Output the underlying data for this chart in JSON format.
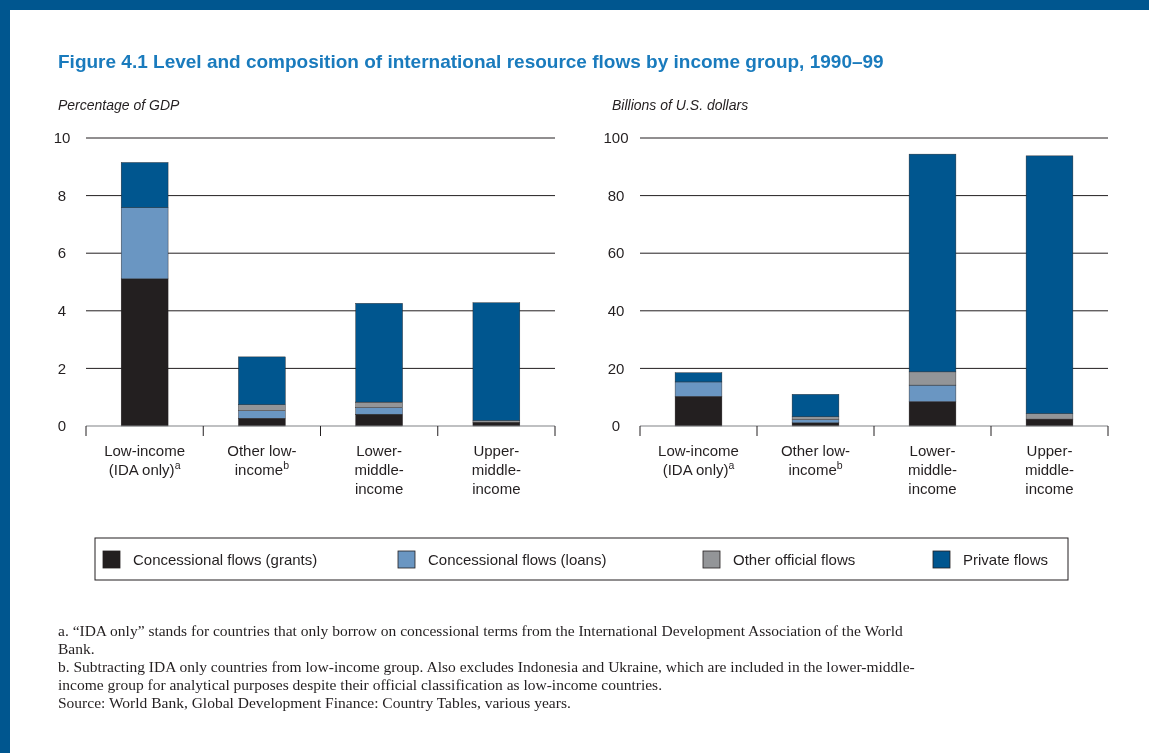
{
  "chart_data": [
    {
      "type": "bar",
      "title": "Figure 4.1  Level and composition of international resource flows by income group, 1990–99",
      "ylabel": "Percentage of GDP",
      "categories": [
        "Low-income (IDA only)$^{a}$",
        "Other low-income$^{b}$",
        "Lower-middle-income",
        "Upper-middle-income"
      ],
      "stacked": true,
      "ylim": [
        0,
        10
      ],
      "yticks": [
        0,
        2,
        4,
        6,
        8,
        10
      ],
      "grid": "y",
      "legend": "bottom",
      "series": [
        {
          "name": "Concessional flows (grants)",
          "color": "#231f20",
          "values": [
            5.11,
            0.27,
            0.41,
            0.13
          ]
        },
        {
          "name": "Concessional flows (loans)",
          "color": "#6a96c2",
          "values": [
            2.47,
            0.26,
            0.23,
            0
          ]
        },
        {
          "name": "Other official flows",
          "color": "#939598",
          "values": [
            0,
            0.21,
            0.19,
            0.06
          ]
        },
        {
          "name": "Private flows",
          "color": "#00568f",
          "values": [
            1.57,
            1.66,
            3.43,
            4.09
          ]
        }
      ]
    },
    {
      "type": "bar",
      "ylabel": "Billions of U.S. dollars",
      "categories": [
        "Low-income (IDA only)$^{a}$",
        "Other low-income$^{b}$",
        "Lower-middle-income",
        "Upper-middle-income"
      ],
      "stacked": true,
      "ylim": [
        0,
        100
      ],
      "yticks": [
        0,
        20,
        40,
        60,
        80,
        100
      ],
      "grid": "y",
      "annotations": [
        "a. “IDA only” stands for countries that only borrow on concessional terms from the International Development Association of the World Bank.",
        "b. Subtracting IDA only countries from low-income group. Also excludes Indonesia and Ukraine, which are included in the lower-middle-income group for analytical purposes despite their official classification as low-income countries.",
        "Source: World Bank, Global Development Finance: Country Tables, various years."
      ],
      "series": [
        {
          "color": "#231f20",
          "values": [
            10.3,
            1.1,
            8.5,
            2.4
          ]
        },
        {
          "color": "#6a96c2",
          "values": [
            5.0,
            1.1,
            5.7,
            0
          ]
        },
        {
          "color": "#939598",
          "values": [
            0,
            1.0,
            4.6,
            1.9
          ]
        },
        {
          "color": "#00568f",
          "values": [
            3.2,
            7.8,
            75.6,
            89.5
          ]
        }
      ]
    }
  ]
}
